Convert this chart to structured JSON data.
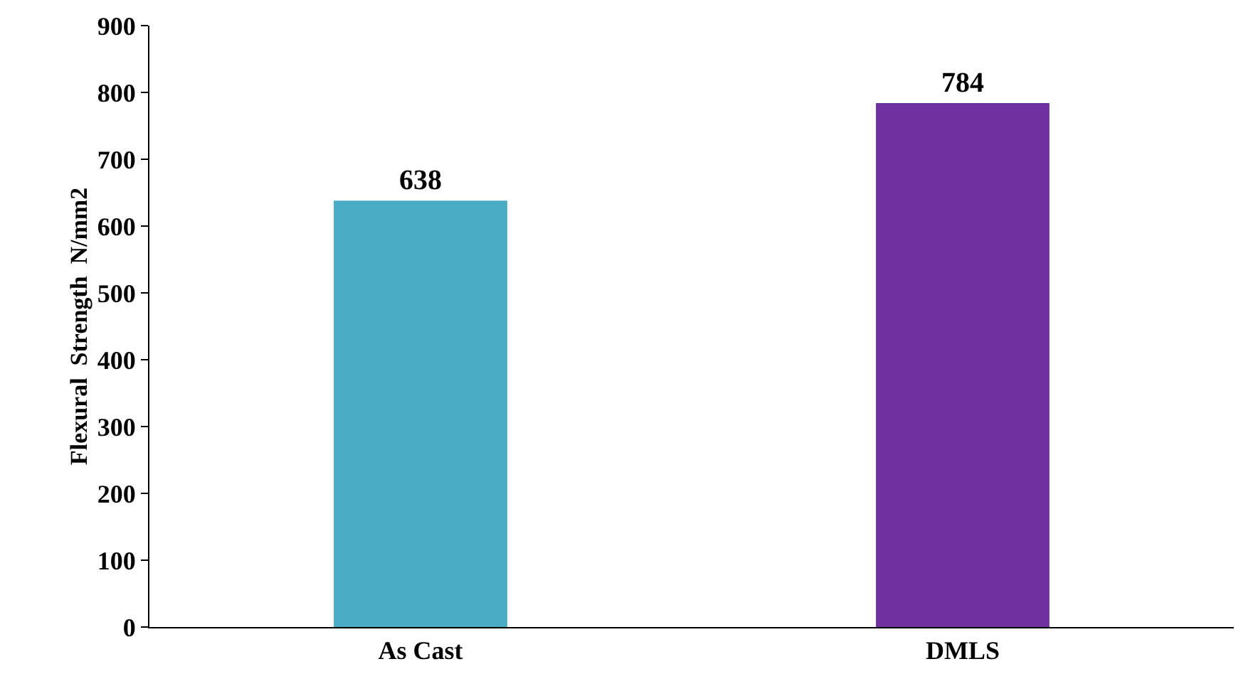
{
  "chart_data": {
    "type": "bar",
    "ylabel": "Flexural  Strength  N/mm2",
    "categories": [
      "As Cast",
      "DMLS"
    ],
    "values": [
      638,
      784
    ],
    "colors": [
      "#4bacc6",
      "#7030a0"
    ],
    "ylim": [
      0,
      900
    ],
    "yticks": [
      0,
      100,
      200,
      300,
      400,
      500,
      600,
      700,
      800,
      900
    ],
    "data_labels": true
  }
}
